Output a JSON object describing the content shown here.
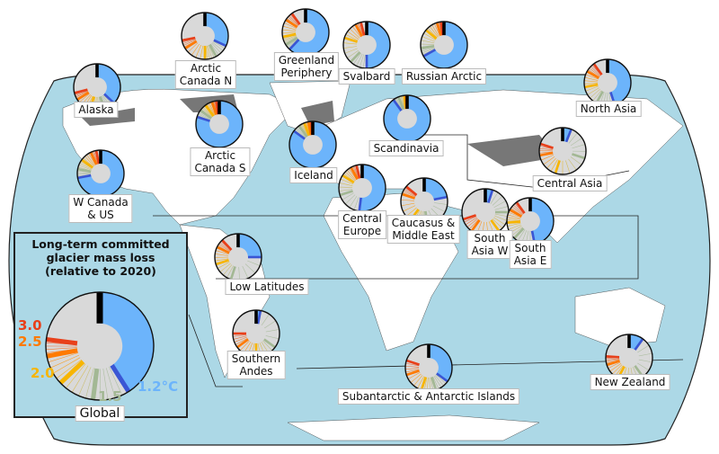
{
  "legend": {
    "title_lines": [
      "Long-term committed",
      "glacier mass loss",
      "(relative to 2020)"
    ],
    "global_label": "Global",
    "global": {
      "t1_2": 0.41,
      "t1_5": 0.52,
      "t2_0": 0.63,
      "t2_5": 0.72,
      "t3_0": 0.77
    },
    "temp_labels": {
      "t3_0": "3.0",
      "t2_5": "2.5",
      "t2_0": "2.0",
      "t1_5": "1.5",
      "t1_2": "1.2°C"
    }
  },
  "colors": {
    "ocean": "#acd8e6",
    "land": "#ffffff",
    "glacier": "#777777",
    "pie_remaining": "#d9d9d9",
    "t1_2": "#6cb4fb",
    "t1_2_edge": "#3a56d4",
    "t1_5": "#a3b894",
    "t2_0": "#f7b500",
    "t2_5": "#ff7a00",
    "t3_0": "#e8401a"
  },
  "regions": [
    {
      "name": "Alaska",
      "t1_2": 0.37,
      "t1_5": 0.45,
      "t2_0": 0.55,
      "t2_5": 0.66,
      "t3_0": 0.71
    },
    {
      "name": "Arctic\nCanada N",
      "t1_2": 0.32,
      "t1_5": 0.42,
      "t2_0": 0.5,
      "t2_5": 0.66,
      "t3_0": 0.72
    },
    {
      "name": "Greenland\nPeriphery",
      "t1_2": 0.62,
      "t1_5": 0.66,
      "t2_0": 0.72,
      "t2_5": 0.84,
      "t3_0": 0.9
    },
    {
      "name": "Svalbard",
      "t1_2": 0.5,
      "t1_5": 0.62,
      "t2_0": 0.8,
      "t2_5": 0.92,
      "t3_0": 0.96
    },
    {
      "name": "Russian Arctic",
      "t1_2": 0.67,
      "t1_5": 0.73,
      "t2_0": 0.86,
      "t2_5": 0.95,
      "t3_0": 0.98
    },
    {
      "name": "North Asia",
      "t1_2": 0.45,
      "t1_5": 0.58,
      "t2_0": 0.72,
      "t2_5": 0.83,
      "t3_0": 0.9
    },
    {
      "name": "W Canada\n& US",
      "t1_2": 0.72,
      "t1_5": 0.78,
      "t2_0": 0.85,
      "t2_5": 0.93,
      "t3_0": 0.97
    },
    {
      "name": "Arctic\nCanada S",
      "t1_2": 0.8,
      "t1_5": 0.85,
      "t2_0": 0.9,
      "t2_5": 0.95,
      "t3_0": 0.98
    },
    {
      "name": "Iceland",
      "t1_2": 0.85,
      "t1_5": 0.9,
      "t2_0": 0.94,
      "t2_5": 0.97,
      "t3_0": 0.99
    },
    {
      "name": "Scandinavia",
      "t1_2": 0.9,
      "t1_5": 0.94,
      "t2_0": 0.98,
      "t2_5": 0.99,
      "t3_0": 1.0
    },
    {
      "name": "Central\nEurope",
      "t1_2": 0.52,
      "t1_5": 0.7,
      "t2_0": 0.84,
      "t2_5": 0.92,
      "t3_0": 0.96
    },
    {
      "name": "Caucasus &\nMiddle East",
      "t1_2": 0.22,
      "t1_5": 0.48,
      "t2_0": 0.6,
      "t2_5": 0.8,
      "t3_0": 0.86
    },
    {
      "name": "Central Asia",
      "t1_2": 0.06,
      "t1_5": 0.3,
      "t2_0": 0.55,
      "t2_5": 0.72,
      "t3_0": 0.8
    },
    {
      "name": "South\nAsia W",
      "t1_2": 0.05,
      "t1_5": 0.25,
      "t2_0": 0.4,
      "t2_5": 0.6,
      "t3_0": 0.7
    },
    {
      "name": "South\nAsia E",
      "t1_2": 0.47,
      "t1_5": 0.62,
      "t2_0": 0.74,
      "t2_5": 0.83,
      "t3_0": 0.9
    },
    {
      "name": "Low Latitudes",
      "t1_2": 0.25,
      "t1_5": 0.55,
      "t2_0": 0.7,
      "t2_5": 0.82,
      "t3_0": 0.88
    },
    {
      "name": "Southern\nAndes",
      "t1_2": 0.03,
      "t1_5": 0.35,
      "t2_0": 0.5,
      "t2_5": 0.65,
      "t3_0": 0.75
    },
    {
      "name": "Subantarctic & Antarctic Islands",
      "t1_2": 0.35,
      "t1_5": 0.45,
      "t2_0": 0.55,
      "t2_5": 0.7,
      "t3_0": 0.8
    },
    {
      "name": "New Zealand",
      "t1_2": 0.1,
      "t1_5": 0.4,
      "t2_0": 0.58,
      "t2_5": 0.7,
      "t3_0": 0.76
    }
  ]
}
